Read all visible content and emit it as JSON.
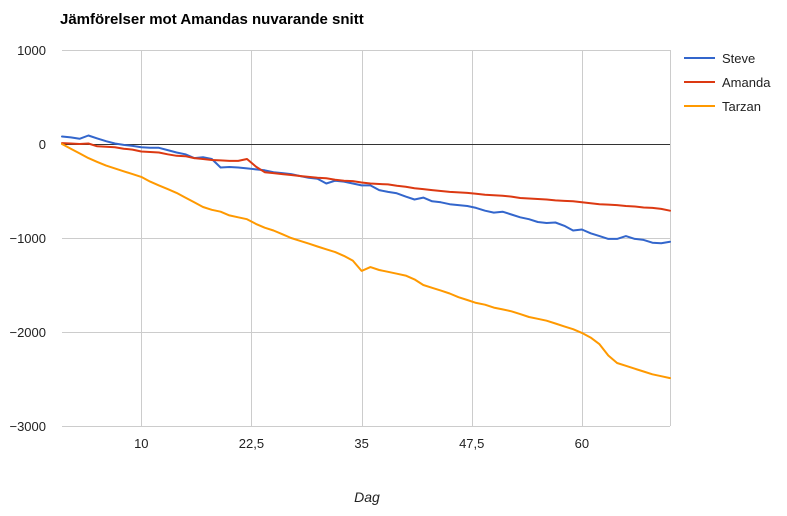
{
  "chart_data": {
    "type": "line",
    "title": "Jämförelser mot Amandas nuvarande snitt",
    "xlabel": "Dag",
    "ylabel": "",
    "xlim": [
      1,
      70
    ],
    "ylim": [
      -3000,
      1000
    ],
    "x_ticks": [
      10,
      22.5,
      35,
      47.5,
      60
    ],
    "x_tick_labels": [
      "10",
      "22,5",
      "35",
      "47,5",
      "60"
    ],
    "y_ticks": [
      1000,
      0,
      -1000,
      -2000,
      -3000
    ],
    "y_tick_labels": [
      "1000",
      "0",
      "−1000",
      "−2000",
      "−3000"
    ],
    "grid": true,
    "zero_line": true,
    "legend_position": "right",
    "x": [
      1,
      2,
      3,
      4,
      5,
      6,
      7,
      8,
      9,
      10,
      11,
      12,
      13,
      14,
      15,
      16,
      17,
      18,
      19,
      20,
      21,
      22,
      23,
      24,
      25,
      26,
      27,
      28,
      29,
      30,
      31,
      32,
      33,
      34,
      35,
      36,
      37,
      38,
      39,
      40,
      41,
      42,
      43,
      44,
      45,
      46,
      47,
      48,
      49,
      50,
      51,
      52,
      53,
      54,
      55,
      56,
      57,
      58,
      59,
      60,
      61,
      62,
      63,
      64,
      65,
      66,
      67,
      68,
      69,
      70
    ],
    "series": [
      {
        "name": "Steve",
        "color": "#3366cc",
        "values": [
          80,
          70,
          55,
          90,
          60,
          30,
          5,
          -10,
          -20,
          -35,
          -40,
          -40,
          -65,
          -90,
          -110,
          -150,
          -140,
          -160,
          -250,
          -245,
          -250,
          -260,
          -270,
          -280,
          -300,
          -310,
          -320,
          -340,
          -360,
          -370,
          -420,
          -390,
          -400,
          -420,
          -440,
          -440,
          -490,
          -510,
          -525,
          -560,
          -590,
          -570,
          -610,
          -620,
          -640,
          -650,
          -660,
          -680,
          -710,
          -730,
          -720,
          -750,
          -780,
          -800,
          -830,
          -840,
          -835,
          -870,
          -920,
          -910,
          -950,
          -980,
          -1010,
          -1010,
          -980,
          -1010,
          -1020,
          -1050,
          -1055,
          -1040
        ],
        "last_value": -1040
      },
      {
        "name": "Amanda",
        "color": "#dc3912",
        "values": [
          10,
          5,
          0,
          5,
          -25,
          -30,
          -35,
          -50,
          -60,
          -80,
          -85,
          -90,
          -110,
          -125,
          -130,
          -150,
          -160,
          -170,
          -175,
          -180,
          -180,
          -160,
          -240,
          -300,
          -310,
          -320,
          -330,
          -340,
          -350,
          -360,
          -365,
          -380,
          -390,
          -395,
          -410,
          -420,
          -425,
          -430,
          -445,
          -455,
          -470,
          -480,
          -490,
          -500,
          -510,
          -515,
          -520,
          -530,
          -540,
          -545,
          -550,
          -560,
          -575,
          -580,
          -585,
          -590,
          -600,
          -605,
          -610,
          -620,
          -630,
          -640,
          -645,
          -650,
          -660,
          -665,
          -675,
          -680,
          -690,
          -710
        ]
      },
      {
        "name": "Tarzan",
        "color": "#ff9900",
        "values": [
          0,
          -50,
          -100,
          -150,
          -190,
          -230,
          -260,
          -290,
          -320,
          -350,
          -400,
          -440,
          -480,
          -520,
          -570,
          -620,
          -670,
          -700,
          -720,
          -760,
          -780,
          -800,
          -850,
          -890,
          -920,
          -960,
          -1000,
          -1030,
          -1060,
          -1090,
          -1120,
          -1150,
          -1190,
          -1240,
          -1350,
          -1310,
          -1340,
          -1360,
          -1380,
          -1400,
          -1440,
          -1500,
          -1530,
          -1560,
          -1590,
          -1630,
          -1660,
          -1690,
          -1710,
          -1740,
          -1760,
          -1780,
          -1810,
          -1840,
          -1860,
          -1880,
          -1910,
          -1940,
          -1970,
          -2010,
          -2060,
          -2130,
          -2250,
          -2330,
          -2360,
          -2390,
          -2420,
          -2450,
          -2470,
          -2490
        ]
      }
    ]
  }
}
